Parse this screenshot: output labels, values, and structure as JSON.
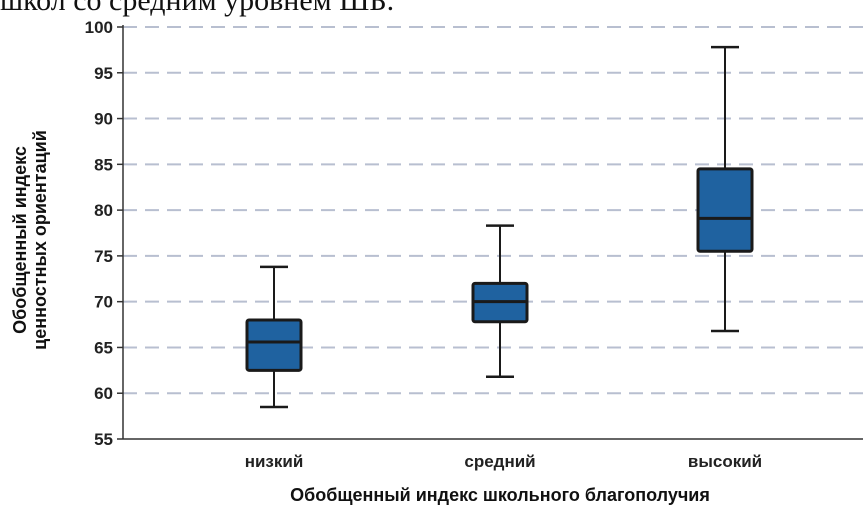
{
  "header": {
    "text": "школ со средним уровнем ШБ."
  },
  "chart_data": {
    "type": "box",
    "title": "",
    "xlabel": "Обобщенный индекс школьного благополучия",
    "ylabel_lines": [
      "Обобщенный индекс",
      "ценностных ориентаций"
    ],
    "ylim": [
      55,
      100
    ],
    "yticks": [
      "55",
      "60",
      "65",
      "70",
      "75",
      "80",
      "85",
      "90",
      "95",
      "100"
    ],
    "grid": "horizontal dashed",
    "colors": {
      "box": "#1f62a0",
      "outline": "#1a1a1a",
      "grid": "#b8bfd0"
    },
    "categories": [
      "низкий",
      "средний",
      "высокий"
    ],
    "boxes": [
      {
        "category": "низкий",
        "min": 58.5,
        "q1": 62.5,
        "median": 65.6,
        "q3": 68.0,
        "max": 73.8
      },
      {
        "category": "средний",
        "min": 61.8,
        "q1": 67.8,
        "median": 70.0,
        "q3": 72.0,
        "max": 78.3
      },
      {
        "category": "высокий",
        "min": 66.8,
        "q1": 75.5,
        "median": 79.1,
        "q3": 84.5,
        "max": 97.8
      }
    ]
  }
}
